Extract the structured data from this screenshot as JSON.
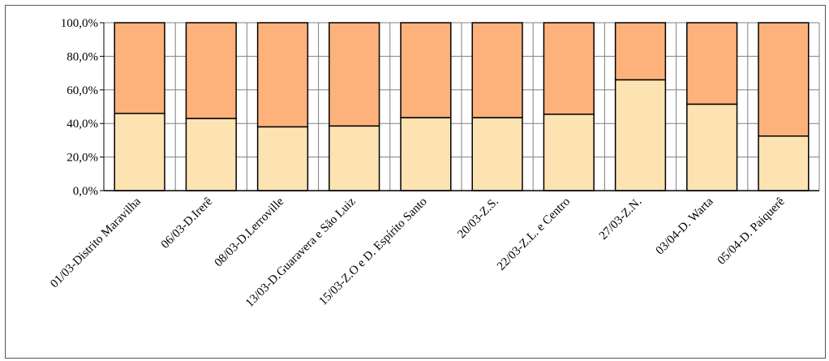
{
  "chart_data": {
    "type": "bar",
    "stacked": true,
    "percent": true,
    "categories": [
      "01/03-Distrito Maravilha",
      "06/03-D.Irerê",
      "08/03-D.Lerroville",
      "13/03-D.Guaravera e São Luiz",
      "15/03-Z.O e D. Espírito Santo",
      "20/03-Z.S.",
      "22/03-Z.L. e Centro",
      "27/03-Z.N.",
      "03/04-D. Warta",
      "05/04-D. Paiquerê"
    ],
    "series": [
      {
        "values": [
          46.0,
          43.0,
          38.0,
          38.5,
          43.5,
          43.5,
          45.5,
          66.0,
          51.5,
          32.5
        ]
      },
      {
        "values": [
          54.0,
          57.0,
          62.0,
          61.5,
          56.5,
          56.5,
          54.5,
          34.0,
          48.5,
          67.5
        ]
      }
    ],
    "ylim": [
      0,
      100
    ],
    "yticks": [
      "0,0%",
      "20,0%",
      "40,0%",
      "60,0%",
      "80,0%",
      "100,0%"
    ],
    "grid": true,
    "colors": {
      "series": [
        "#fde3b2",
        "#fdb27c"
      ],
      "bar_outline": "#000000",
      "grid": "#808080",
      "axis": "#000000"
    }
  }
}
